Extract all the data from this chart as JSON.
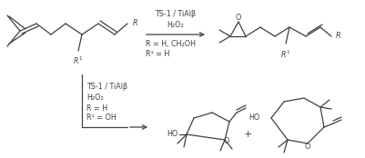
{
  "bg_color": "#ffffff",
  "line_color": "#404040",
  "lw": 0.9,
  "top_reagent_line1": "TS-1 / TiAlβ",
  "top_reagent_line2": "H₂O₂",
  "top_conditions_line1": "R = H, CH₂OH",
  "top_conditions_line2": "R¹ = H",
  "bot_reagent_line1": "TS-1 / TiAlβ",
  "bot_reagent_line2": "H₂O₂",
  "bot_conditions_line1": "R = H",
  "bot_conditions_line2": "R¹ = OH",
  "fs": 6.5,
  "fs_small": 5.8
}
